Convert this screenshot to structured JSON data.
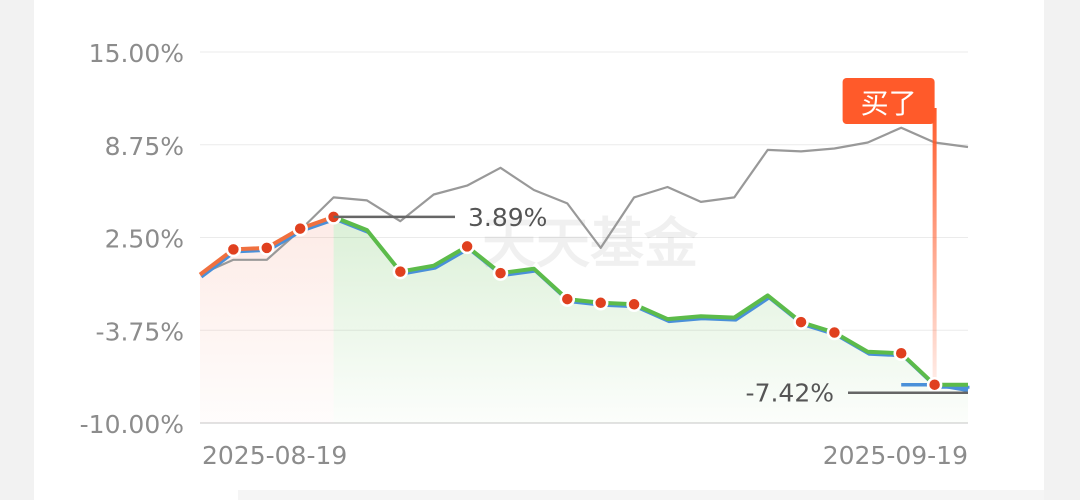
{
  "chart_data": {
    "type": "line",
    "title": "",
    "xlabel": "",
    "ylabel": "",
    "ylim": [
      -10,
      15
    ],
    "y_ticks": [
      "15.00%",
      "8.75%",
      "2.50%",
      "-3.75%",
      "-10.00%"
    ],
    "x_ticks": [
      "2025-08-19",
      "2025-09-19"
    ],
    "grid": true,
    "legend": "none",
    "watermark": "天天基金",
    "series": [
      {
        "role": "fund",
        "color": "#5cbb4a",
        "values": [
          0,
          1.7,
          1.8,
          3.1,
          3.89,
          3.0,
          0.2,
          0.6,
          1.9,
          0.1,
          0.4,
          -1.65,
          -1.9,
          -2.0,
          -3.0,
          -2.8,
          -2.9,
          -1.4,
          -3.2,
          -3.9,
          -5.2,
          -5.3,
          -7.42,
          -7.42
        ]
      },
      {
        "role": "benchmark",
        "color": "#999999",
        "values": [
          0,
          1.0,
          1.0,
          3.0,
          5.2,
          5.0,
          3.6,
          5.4,
          6.0,
          7.2,
          5.7,
          4.8,
          1.8,
          5.2,
          5.9,
          4.9,
          5.2,
          8.4,
          8.3,
          8.5,
          8.9,
          9.9,
          8.9,
          8.6
        ]
      },
      {
        "role": "tail",
        "color": "#4a90d9",
        "values": [
          -7.42,
          -7.42,
          -7.8
        ]
      }
    ],
    "markers": [
      1,
      2,
      3,
      4,
      6,
      8,
      9,
      11,
      12,
      13,
      18,
      19,
      21,
      22
    ],
    "buy_index": 22,
    "buy_label": "买了",
    "callouts": [
      {
        "index": 4,
        "label": "3.89%"
      },
      {
        "index": 22,
        "label": "-7.42%"
      }
    ]
  }
}
